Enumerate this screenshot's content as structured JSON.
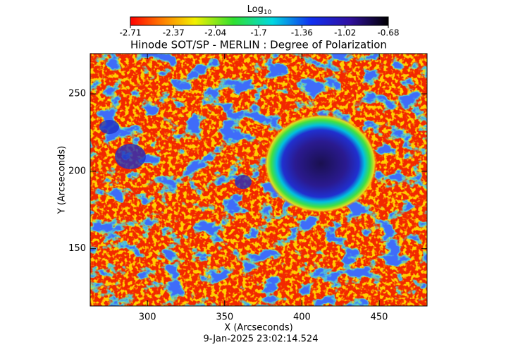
{
  "chart_data": {
    "type": "image",
    "title": "Hinode SOT/SP - MERLIN : Degree of Polarization",
    "x_label": "X (Arcseconds)",
    "y_label": "Y (Arcseconds)",
    "timestamp": "9-Jan-2025 23:02:14.524",
    "colorbar_label": "Log",
    "colorbar_label_subscript": "10",
    "clim": [
      -2.71,
      -0.68
    ],
    "cticks": [
      -2.71,
      -2.37,
      -2.04,
      -1.7,
      -1.36,
      -1.02,
      -0.68
    ],
    "xlim": [
      263,
      481
    ],
    "xticks": [
      300,
      350,
      400,
      450
    ],
    "ylim": [
      113,
      276
    ],
    "yticks": [
      150,
      200,
      250
    ]
  }
}
